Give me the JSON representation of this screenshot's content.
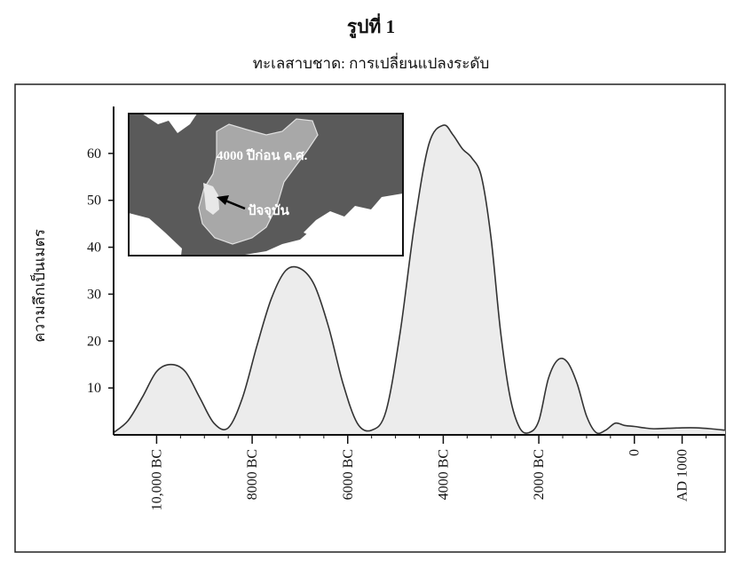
{
  "figure": {
    "title": "รูปที่ 1",
    "subtitle": "ทะเลสาบชาด: การเปลี่ยนแปลงระดับ"
  },
  "chart_data": {
    "type": "area",
    "title": "รูปที่ 1",
    "subtitle": "ทะเลสาบชาด: การเปลี่ยนแปลงระดับ",
    "xlabel": "",
    "ylabel": "ความลึกเป็นเมตร",
    "x_tick_values": [
      -10000,
      -8000,
      -6000,
      -4000,
      -2000,
      0,
      1000
    ],
    "x_tick_labels": [
      "10,000 BC",
      "8000 BC",
      "6000 BC",
      "4000 BC",
      "2000 BC",
      "0",
      "AD 1000"
    ],
    "xlim": [
      -10900,
      1900
    ],
    "y_ticks": [
      10,
      20,
      30,
      40,
      50,
      60
    ],
    "ylim": [
      0,
      70
    ],
    "grid": false,
    "fill_color": "#ececec",
    "line_color": "#333333",
    "series": [
      {
        "x": [
          -10900,
          -10600,
          -10300,
          -10000,
          -9700,
          -9400,
          -9100,
          -8800,
          -8500,
          -8200,
          -7900,
          -7600,
          -7300,
          -7000,
          -6700,
          -6400,
          -6100,
          -5800,
          -5500,
          -5200,
          -4900,
          -4600,
          -4300,
          -4000,
          -3800,
          -3600,
          -3400,
          -3200,
          -3000,
          -2800,
          -2600,
          -2400,
          -2200,
          -2000,
          -1800,
          -1600,
          -1400,
          -1200,
          -1000,
          -800,
          -600,
          -400,
          -200,
          0,
          200,
          400,
          700,
          1000,
          1300,
          1600,
          1900
        ],
        "y": [
          0.5,
          3,
          8,
          13.5,
          15,
          13.5,
          8,
          2.5,
          1.5,
          8,
          19,
          29,
          35,
          35.5,
          32,
          23,
          11,
          2.5,
          1,
          5,
          22,
          45,
          62,
          66,
          64,
          61,
          59,
          55,
          42,
          22,
          8,
          1.5,
          0.5,
          3,
          12,
          16,
          15.5,
          11,
          4,
          0.5,
          1,
          2.5,
          2,
          1.8,
          1.5,
          1.3,
          1.4,
          1.5,
          1.5,
          1.3,
          1
        ],
        "style": "smooth"
      }
    ],
    "inset": {
      "description_labels": [
        "4000 ปีก่อน ค.ศ.",
        "ปัจจุบัน"
      ],
      "colors": {
        "land": "#5a5a5a",
        "ancient_lake": "#a9a9a9",
        "present_lake": "#e6e6e6",
        "outside": "#ffffff"
      }
    }
  }
}
